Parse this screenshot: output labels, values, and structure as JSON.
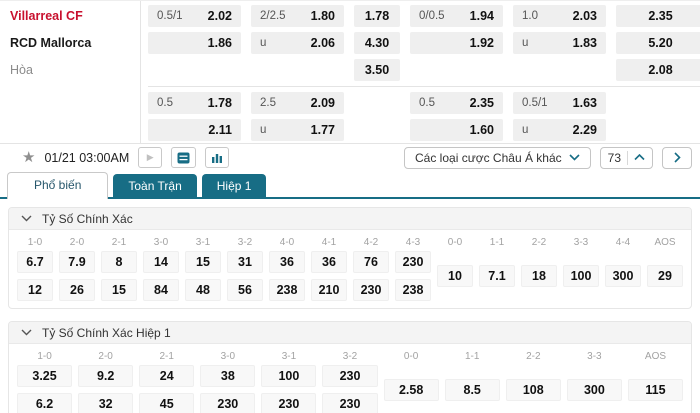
{
  "colors": {
    "accent": "#176d85",
    "home_red": "#c8102e",
    "odds_box_bg": "#efefef"
  },
  "teams": {
    "home": "Villarreal CF",
    "away": "RCD Mallorca",
    "draw": "Hòa"
  },
  "odds": {
    "block1": {
      "rows": [
        {
          "cells": [
            {
              "col": 0,
              "label": "0.5/1",
              "value": "2.02"
            },
            {
              "col": 1,
              "label": "2/2.5",
              "value": "1.80"
            },
            {
              "col": 2,
              "label": "",
              "value": "1.78"
            },
            {
              "col": 3,
              "label": "0/0.5",
              "value": "1.94"
            },
            {
              "col": 4,
              "label": "1.0",
              "value": "2.03"
            },
            {
              "col": 5,
              "label": "",
              "value": "2.35"
            }
          ]
        },
        {
          "cells": [
            {
              "col": 0,
              "label": "",
              "value": "1.86"
            },
            {
              "col": 1,
              "label": "u",
              "value": "2.06"
            },
            {
              "col": 2,
              "label": "",
              "value": "4.30"
            },
            {
              "col": 3,
              "label": "",
              "value": "1.92"
            },
            {
              "col": 4,
              "label": "u",
              "value": "1.83"
            },
            {
              "col": 5,
              "label": "",
              "value": "5.20"
            }
          ]
        },
        {
          "cells": [
            {
              "col": 2,
              "label": "",
              "value": "3.50"
            },
            {
              "col": 5,
              "label": "",
              "value": "2.08"
            }
          ]
        }
      ]
    },
    "block2": {
      "rows": [
        {
          "cells": [
            {
              "col": 0,
              "label": "0.5",
              "value": "1.78"
            },
            {
              "col": 1,
              "label": "2.5",
              "value": "2.09"
            },
            {
              "col": 3,
              "label": "0.5",
              "value": "2.35"
            },
            {
              "col": 4,
              "label": "0.5/1",
              "value": "1.63"
            }
          ]
        },
        {
          "cells": [
            {
              "col": 0,
              "label": "",
              "value": "2.11"
            },
            {
              "col": 1,
              "label": "u",
              "value": "1.77"
            },
            {
              "col": 3,
              "label": "",
              "value": "1.60"
            },
            {
              "col": 4,
              "label": "u",
              "value": "2.29"
            }
          ]
        }
      ]
    }
  },
  "toolbar": {
    "datetime": "01/21 03:00AM",
    "market_dropdown_label": "Các loại cược Châu Á khác",
    "market_count": "73"
  },
  "tabs": [
    {
      "label": "Phổ biến",
      "active": true
    },
    {
      "label": "Toàn Trận",
      "active": false
    },
    {
      "label": "Hiệp 1",
      "active": false
    }
  ],
  "sections": [
    {
      "title": "Tỷ Số Chính Xác",
      "columns": [
        {
          "score": "1-0",
          "values": [
            "6.7",
            "12"
          ]
        },
        {
          "score": "2-0",
          "values": [
            "7.9",
            "26"
          ]
        },
        {
          "score": "2-1",
          "values": [
            "8",
            "15"
          ]
        },
        {
          "score": "3-0",
          "values": [
            "14",
            "84"
          ]
        },
        {
          "score": "3-1",
          "values": [
            "15",
            "48"
          ]
        },
        {
          "score": "3-2",
          "values": [
            "31",
            "56"
          ]
        },
        {
          "score": "4-0",
          "values": [
            "36",
            "238"
          ]
        },
        {
          "score": "4-1",
          "values": [
            "36",
            "210"
          ]
        },
        {
          "score": "4-2",
          "values": [
            "76",
            "230"
          ]
        },
        {
          "score": "4-3",
          "values": [
            "230",
            "238"
          ]
        },
        {
          "score": "0-0",
          "values": [
            "10"
          ]
        },
        {
          "score": "1-1",
          "values": [
            "7.1"
          ]
        },
        {
          "score": "2-2",
          "values": [
            "18"
          ]
        },
        {
          "score": "3-3",
          "values": [
            "100"
          ]
        },
        {
          "score": "4-4",
          "values": [
            "300"
          ]
        },
        {
          "score": "AOS",
          "values": [
            "29"
          ]
        }
      ]
    },
    {
      "title": "Tỷ Số Chính Xác Hiệp 1",
      "columns": [
        {
          "score": "1-0",
          "values": [
            "3.25",
            "6.2"
          ]
        },
        {
          "score": "2-0",
          "values": [
            "9.2",
            "32"
          ]
        },
        {
          "score": "2-1",
          "values": [
            "24",
            "45"
          ]
        },
        {
          "score": "3-0",
          "values": [
            "38",
            "230"
          ]
        },
        {
          "score": "3-1",
          "values": [
            "100",
            "230"
          ]
        },
        {
          "score": "3-2",
          "values": [
            "230",
            "230"
          ]
        },
        {
          "score": "0-0",
          "values": [
            "2.58"
          ]
        },
        {
          "score": "1-1",
          "values": [
            "8.5"
          ]
        },
        {
          "score": "2-2",
          "values": [
            "108"
          ]
        },
        {
          "score": "3-3",
          "values": [
            "300"
          ]
        },
        {
          "score": "AOS",
          "values": [
            "115"
          ]
        }
      ]
    }
  ]
}
